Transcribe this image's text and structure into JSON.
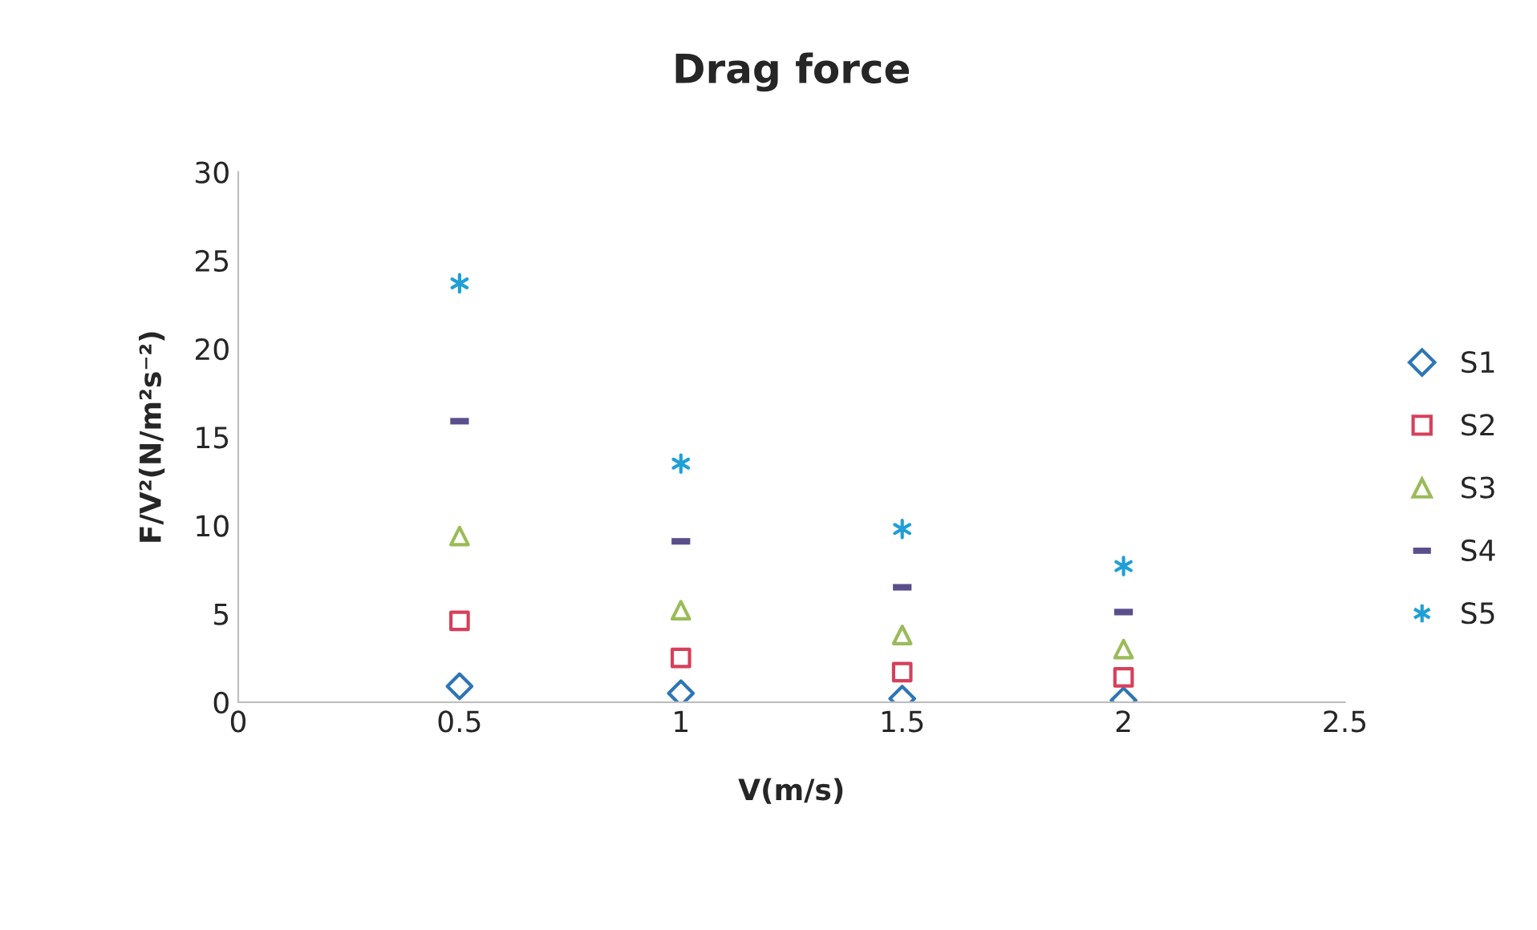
{
  "chart_data": {
    "type": "scatter",
    "title": "Drag force",
    "xlabel": "V(m/s)",
    "ylabel": "F/V²(N/m²s⁻²)",
    "x": [
      0.5,
      1,
      1.5,
      2
    ],
    "series": [
      {
        "name": "S1",
        "color": "#2e75b6",
        "marker": "diamond",
        "values": [
          0.9,
          0.5,
          0.2,
          0.1
        ]
      },
      {
        "name": "S2",
        "color": "#d6405a",
        "marker": "square",
        "values": [
          4.6,
          2.5,
          1.7,
          1.4
        ]
      },
      {
        "name": "S3",
        "color": "#9bbb59",
        "marker": "triangle",
        "values": [
          9.4,
          5.2,
          3.8,
          3.0
        ]
      },
      {
        "name": "S4",
        "color": "#5a4f8a",
        "values": [
          15.9,
          9.1,
          6.5,
          5.1
        ]
      },
      {
        "name": "S5",
        "color": "#1f9fd6",
        "marker": "cross",
        "values": [
          23.7,
          13.5,
          9.8,
          7.7
        ]
      }
    ],
    "xlim": [
      0,
      2.5
    ],
    "xticks": [
      0,
      0.5,
      1,
      1.5,
      2,
      2.5
    ],
    "ylim": [
      0,
      30
    ],
    "yticks": [
      0,
      5,
      10,
      15,
      20,
      25,
      30
    ],
    "grid": false,
    "legend": "right"
  }
}
